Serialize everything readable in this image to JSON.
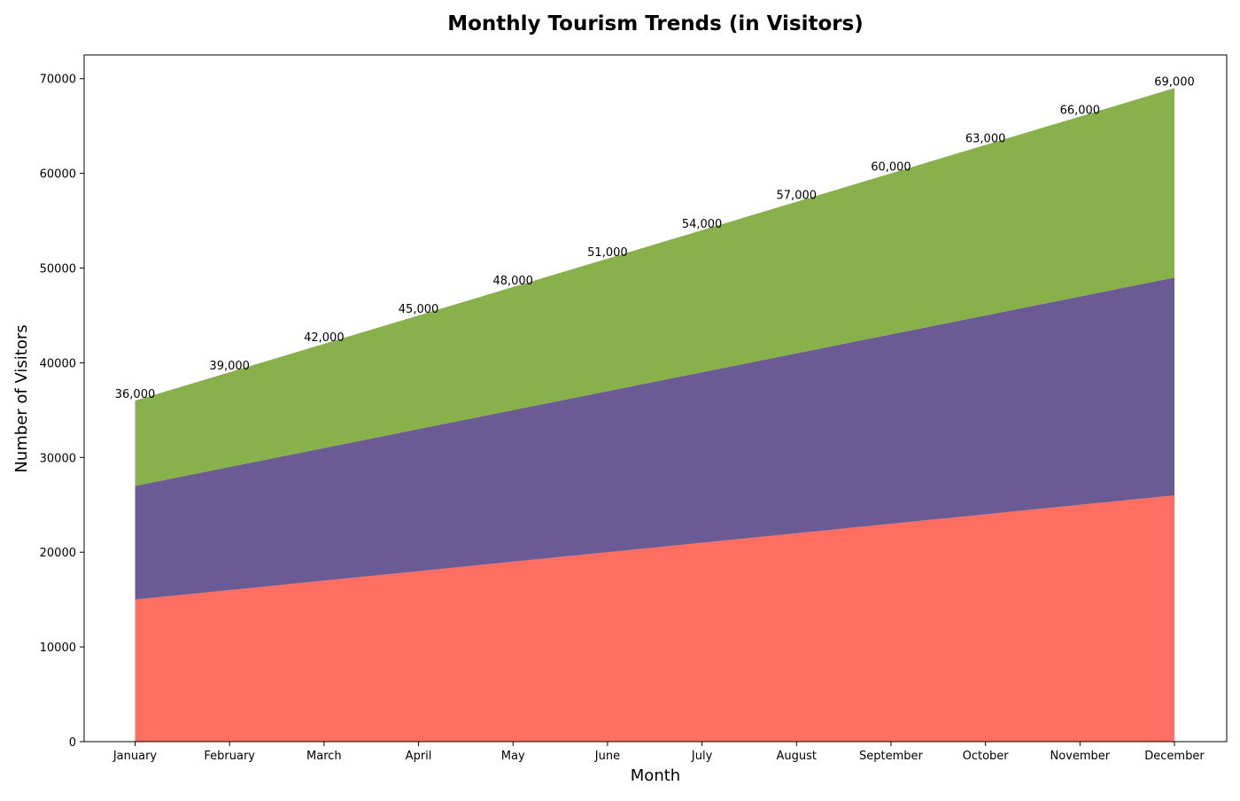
{
  "chart_data": {
    "type": "area",
    "stacked": true,
    "title": "Monthly Tourism Trends (in Visitors)",
    "xlabel": "Month",
    "ylabel": "Number of Visitors",
    "categories": [
      "January",
      "February",
      "March",
      "April",
      "May",
      "June",
      "July",
      "August",
      "September",
      "October",
      "November",
      "December"
    ],
    "ylim": [
      0,
      72500
    ],
    "yticks": [
      0,
      10000,
      20000,
      30000,
      40000,
      50000,
      60000,
      70000
    ],
    "ytick_labels": [
      "0",
      "10000",
      "20000",
      "30000",
      "40000",
      "50000",
      "60000",
      "70000"
    ],
    "series": [
      {
        "color": "#ff6f61",
        "values": [
          15000,
          16000,
          17000,
          18000,
          19000,
          20000,
          21000,
          22000,
          23000,
          24000,
          25000,
          26000
        ]
      },
      {
        "color": "#6b5b95",
        "values": [
          12000,
          13000,
          14000,
          15000,
          16000,
          17000,
          18000,
          19000,
          20000,
          21000,
          22000,
          23000
        ]
      },
      {
        "color": "#88b04b",
        "values": [
          9000,
          10000,
          11000,
          12000,
          13000,
          14000,
          15000,
          16000,
          17000,
          18000,
          19000,
          20000
        ]
      }
    ],
    "totals": [
      36000,
      39000,
      42000,
      45000,
      48000,
      51000,
      54000,
      57000,
      60000,
      63000,
      66000,
      69000
    ],
    "total_labels": [
      "36,000",
      "39,000",
      "42,000",
      "45,000",
      "48,000",
      "51,000",
      "54,000",
      "57,000",
      "60,000",
      "63,000",
      "66,000",
      "69,000"
    ],
    "legend": "none",
    "grid": false
  }
}
